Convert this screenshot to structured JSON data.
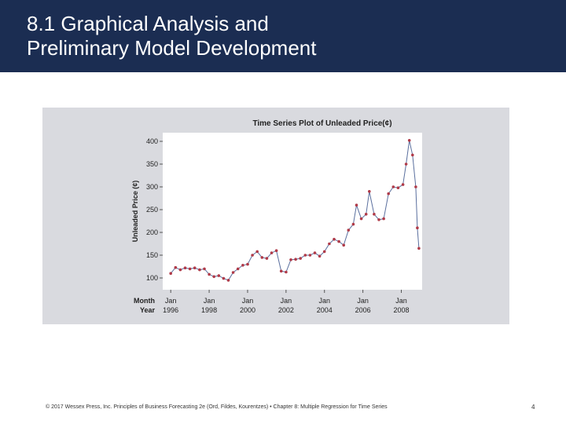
{
  "slide": {
    "title_line1": "8.1 Graphical Analysis and",
    "title_line2": "Preliminary Model Development",
    "footer": "© 2017 Wessex Press, Inc. Principles of Business Forecasting 2e (Ord, Fildes, Kourentzes) • Chapter 8: Multiple Regression for Time Series",
    "page_number": "4"
  },
  "colors": {
    "header_bg": "#1b2d52",
    "chart_panel_bg": "#d9dadf",
    "series_color": "#b03a48",
    "series_line": "#5a6f9e"
  },
  "chart_data": {
    "type": "line",
    "title": "Time Series Plot of Unleaded Price(¢)",
    "ylabel": "Unleaded Price (¢)",
    "ylim": [
      100,
      400
    ],
    "yticks": [
      100,
      150,
      200,
      250,
      300,
      350,
      400
    ],
    "x_axis_row_labels": [
      "Month",
      "Year"
    ],
    "x_ticks": [
      {
        "date": "1996-01",
        "month": "Jan",
        "year": "1996"
      },
      {
        "date": "1998-01",
        "month": "Jan",
        "year": "1998"
      },
      {
        "date": "2000-01",
        "month": "Jan",
        "year": "2000"
      },
      {
        "date": "2002-01",
        "month": "Jan",
        "year": "2002"
      },
      {
        "date": "2004-01",
        "month": "Jan",
        "year": "2004"
      },
      {
        "date": "2006-01",
        "month": "Jan",
        "year": "2006"
      },
      {
        "date": "2008-01",
        "month": "Jan",
        "year": "2008"
      }
    ],
    "xlim": [
      "1995-08",
      "2009-02"
    ],
    "series": [
      {
        "x": [
          "1996-01",
          "1996-04",
          "1996-07",
          "1996-10",
          "1997-01",
          "1997-04",
          "1997-07",
          "1997-10",
          "1998-01",
          "1998-04",
          "1998-07",
          "1998-10",
          "1999-01",
          "1999-04",
          "1999-07",
          "1999-10",
          "2000-01",
          "2000-04",
          "2000-07",
          "2000-10",
          "2001-01",
          "2001-04",
          "2001-07",
          "2001-10",
          "2002-01",
          "2002-04",
          "2002-07",
          "2002-10",
          "2003-01",
          "2003-04",
          "2003-07",
          "2003-10",
          "2004-01",
          "2004-04",
          "2004-07",
          "2004-10",
          "2005-01",
          "2005-04",
          "2005-07",
          "2005-09",
          "2005-12",
          "2006-03",
          "2006-05",
          "2006-08",
          "2006-11",
          "2007-02",
          "2007-05",
          "2007-08",
          "2007-11",
          "2008-02",
          "2008-04",
          "2008-06",
          "2008-08",
          "2008-10",
          "2008-11",
          "2008-12"
        ],
        "values": [
          110,
          123,
          118,
          122,
          120,
          122,
          118,
          120,
          108,
          103,
          105,
          99,
          95,
          112,
          120,
          128,
          130,
          150,
          158,
          145,
          143,
          155,
          160,
          115,
          113,
          140,
          141,
          143,
          150,
          150,
          155,
          148,
          158,
          175,
          185,
          180,
          172,
          205,
          218,
          260,
          230,
          240,
          290,
          240,
          228,
          230,
          285,
          300,
          298,
          305,
          350,
          402,
          370,
          300,
          210,
          165
        ]
      }
    ]
  }
}
